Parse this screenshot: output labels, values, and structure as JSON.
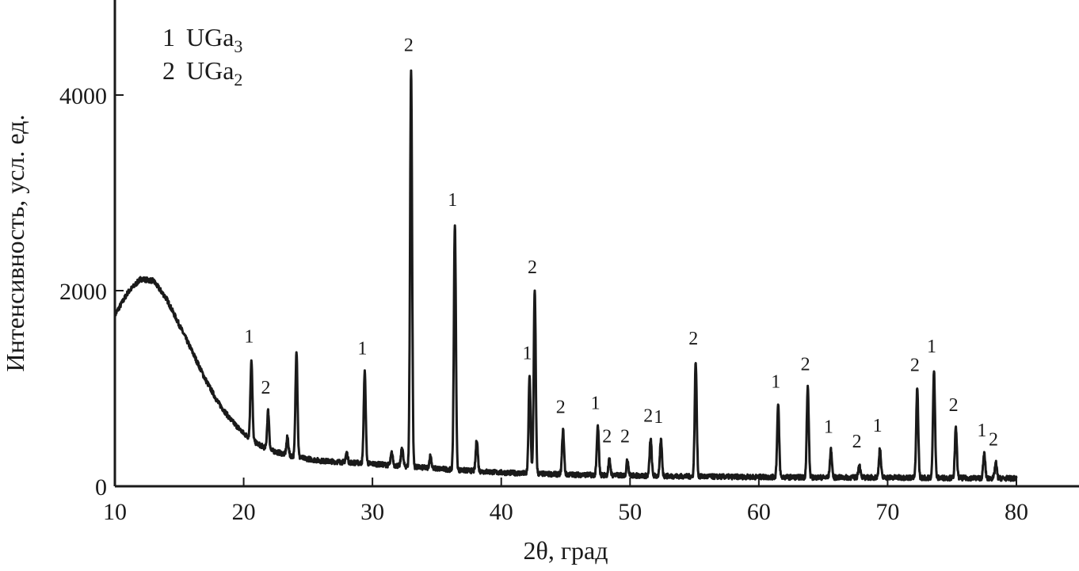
{
  "chart_data": {
    "type": "line",
    "xlabel": "2θ, град",
    "ylabel": "Интенсивность, усл. ед.",
    "xlim": [
      10,
      85
    ],
    "ylim": [
      0,
      4800
    ],
    "x_ticks": [
      10,
      20,
      30,
      40,
      50,
      60,
      70,
      80
    ],
    "y_ticks": [
      0,
      2000,
      4000
    ],
    "grid": false,
    "line_color": "#1a1a1a",
    "legend": {
      "placement": "top-left",
      "entries": [
        {
          "number": "1",
          "phase": "UGa",
          "subscript": "3"
        },
        {
          "number": "2",
          "phase": "UGa",
          "subscript": "2"
        }
      ]
    },
    "background": {
      "x": [
        10,
        11,
        12,
        13,
        14,
        15,
        16,
        17,
        18,
        19,
        20,
        21,
        22,
        24,
        26,
        30,
        35,
        40,
        45,
        50,
        55,
        60,
        65,
        70,
        75,
        80
      ],
      "y": [
        1750,
        1980,
        2120,
        2100,
        1920,
        1650,
        1380,
        1100,
        860,
        680,
        540,
        440,
        370,
        300,
        260,
        230,
        180,
        140,
        120,
        110,
        100,
        95,
        90,
        90,
        85,
        80
      ]
    },
    "peaks": [
      {
        "x": 20.6,
        "y": 1290,
        "label": "1"
      },
      {
        "x": 21.9,
        "y": 770,
        "label": "2"
      },
      {
        "x": 23.4,
        "y": 500,
        "label": ""
      },
      {
        "x": 24.1,
        "y": 1390,
        "label": ""
      },
      {
        "x": 28.0,
        "y": 340,
        "label": ""
      },
      {
        "x": 29.4,
        "y": 1170,
        "label": "1"
      },
      {
        "x": 31.5,
        "y": 340,
        "label": ""
      },
      {
        "x": 32.3,
        "y": 400,
        "label": ""
      },
      {
        "x": 33.0,
        "y": 4270,
        "label": "2"
      },
      {
        "x": 34.5,
        "y": 310,
        "label": ""
      },
      {
        "x": 36.4,
        "y": 2690,
        "label": "1"
      },
      {
        "x": 38.1,
        "y": 480,
        "label": ""
      },
      {
        "x": 42.2,
        "y": 1120,
        "label": "1"
      },
      {
        "x": 42.6,
        "y": 2000,
        "label": "2"
      },
      {
        "x": 44.8,
        "y": 570,
        "label": "2"
      },
      {
        "x": 47.5,
        "y": 610,
        "label": "1"
      },
      {
        "x": 48.4,
        "y": 270,
        "label": "2"
      },
      {
        "x": 49.8,
        "y": 270,
        "label": "2"
      },
      {
        "x": 51.6,
        "y": 480,
        "label": "2"
      },
      {
        "x": 52.4,
        "y": 470,
        "label": "1"
      },
      {
        "x": 55.1,
        "y": 1270,
        "label": "2"
      },
      {
        "x": 61.5,
        "y": 830,
        "label": "1"
      },
      {
        "x": 63.8,
        "y": 1010,
        "label": "2"
      },
      {
        "x": 65.6,
        "y": 370,
        "label": "1"
      },
      {
        "x": 67.8,
        "y": 220,
        "label": "2"
      },
      {
        "x": 69.4,
        "y": 380,
        "label": "1"
      },
      {
        "x": 72.3,
        "y": 1000,
        "label": "2"
      },
      {
        "x": 73.6,
        "y": 1190,
        "label": "1"
      },
      {
        "x": 75.3,
        "y": 590,
        "label": "2"
      },
      {
        "x": 77.5,
        "y": 330,
        "label": "1"
      },
      {
        "x": 78.4,
        "y": 240,
        "label": "2"
      }
    ]
  }
}
